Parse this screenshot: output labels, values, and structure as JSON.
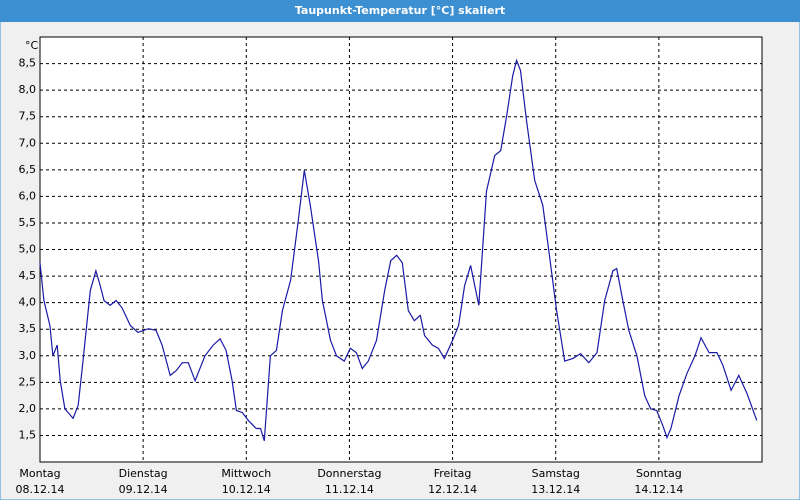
{
  "chart_data": {
    "type": "line",
    "title": "Taupunkt-Temperatur [°C] skaliert",
    "y_unit": "°C",
    "x": [
      0,
      0.9,
      2.3,
      3.0,
      4.0,
      4.7,
      5.8,
      7.7,
      8.9,
      10.0,
      11.7,
      13.0,
      14.0,
      14.9,
      16.3,
      17.7,
      19.1,
      21.0,
      22.8,
      25.2,
      27.0,
      28.4,
      30.3,
      31.7,
      33.1,
      34.5,
      36.1,
      38.4,
      40.3,
      41.9,
      43.3,
      44.7,
      45.7,
      47.1,
      48.5,
      50.3,
      51.3,
      52.2,
      53.6,
      55.0,
      56.4,
      58.3,
      60.1,
      61.5,
      62.9,
      64.8,
      65.7,
      67.6,
      69.0,
      70.8,
      72.2,
      73.6,
      75.0,
      76.4,
      78.3,
      80.2,
      81.6,
      83.0,
      84.3,
      85.7,
      87.1,
      88.5,
      89.5,
      91.3,
      92.7,
      94.1,
      96.0,
      97.4,
      98.8,
      100.2,
      102.1,
      103.9,
      105.8,
      107.2,
      108.6,
      110.0,
      110.9,
      111.8,
      113.2,
      115.1,
      117.0,
      118.4,
      120.2,
      122.1,
      124.0,
      125.8,
      127.7,
      129.6,
      131.4,
      133.3,
      134.2,
      135.6,
      137.0,
      138.9,
      140.7,
      142.1,
      143.5,
      144.9,
      145.9,
      146.8,
      148.7,
      150.5,
      152.4,
      153.8,
      155.7,
      157.5,
      158.9,
      160.8,
      162.6,
      164.5,
      166.8
    ],
    "series": [
      {
        "color": "#1a1aa6",
        "values": [
          4.75,
          4.04,
          3.57,
          3.0,
          3.2,
          2.53,
          2.0,
          1.82,
          2.07,
          2.9,
          4.23,
          4.6,
          4.32,
          4.04,
          3.95,
          4.04,
          3.9,
          3.57,
          3.44,
          3.51,
          3.48,
          3.2,
          2.63,
          2.72,
          2.87,
          2.87,
          2.53,
          3.0,
          3.2,
          3.32,
          3.1,
          2.53,
          1.97,
          1.93,
          1.78,
          1.63,
          1.63,
          1.4,
          3.0,
          3.1,
          3.85,
          4.42,
          5.55,
          6.49,
          5.83,
          4.79,
          4.04,
          3.29,
          3.0,
          2.9,
          3.14,
          3.06,
          2.76,
          2.9,
          3.29,
          4.23,
          4.79,
          4.89,
          4.75,
          3.85,
          3.66,
          3.76,
          3.38,
          3.2,
          3.14,
          2.95,
          3.29,
          3.57,
          4.32,
          4.7,
          3.95,
          6.1,
          6.77,
          6.86,
          7.52,
          8.27,
          8.56,
          8.37,
          7.43,
          6.3,
          5.83,
          4.98,
          3.85,
          2.9,
          2.95,
          3.04,
          2.87,
          3.06,
          4.04,
          4.6,
          4.64,
          4.04,
          3.48,
          3.0,
          2.25,
          2.0,
          1.97,
          1.69,
          1.46,
          1.63,
          2.25,
          2.66,
          3.0,
          3.34,
          3.06,
          3.06,
          2.82,
          2.35,
          2.63,
          2.29,
          1.78
        ]
      }
    ],
    "xlim": [
      0,
      168
    ],
    "xticks": [
      {
        "value": 0,
        "label": "Montag",
        "date": "08.12.14"
      },
      {
        "value": 24,
        "label": "Dienstag",
        "date": "09.12.14"
      },
      {
        "value": 48,
        "label": "Mittwoch",
        "date": "10.12.14"
      },
      {
        "value": 72,
        "label": "Donnerstag",
        "date": "11.12.14"
      },
      {
        "value": 96,
        "label": "Freitag",
        "date": "12.12.14"
      },
      {
        "value": 120,
        "label": "Samstag",
        "date": "13.12.14"
      },
      {
        "value": 144,
        "label": "Sonntag",
        "date": "14.12.14"
      }
    ],
    "ylim": [
      1,
      9
    ],
    "yticks": [
      {
        "value": 1.5,
        "label": "1,5"
      },
      {
        "value": 2,
        "label": "2,0"
      },
      {
        "value": 2.5,
        "label": "2,5"
      },
      {
        "value": 3,
        "label": "3,0"
      },
      {
        "value": 3.5,
        "label": "3,5"
      },
      {
        "value": 4,
        "label": "4,0"
      },
      {
        "value": 4.5,
        "label": "4,5"
      },
      {
        "value": 5,
        "label": "5,0"
      },
      {
        "value": 5.5,
        "label": "5,5"
      },
      {
        "value": 6,
        "label": "6,0"
      },
      {
        "value": 6.5,
        "label": "6,5"
      },
      {
        "value": 7,
        "label": "7,0"
      },
      {
        "value": 7.5,
        "label": "7,5"
      },
      {
        "value": 8,
        "label": "8,0"
      },
      {
        "value": 8.5,
        "label": "8,5"
      }
    ],
    "grid": true
  }
}
